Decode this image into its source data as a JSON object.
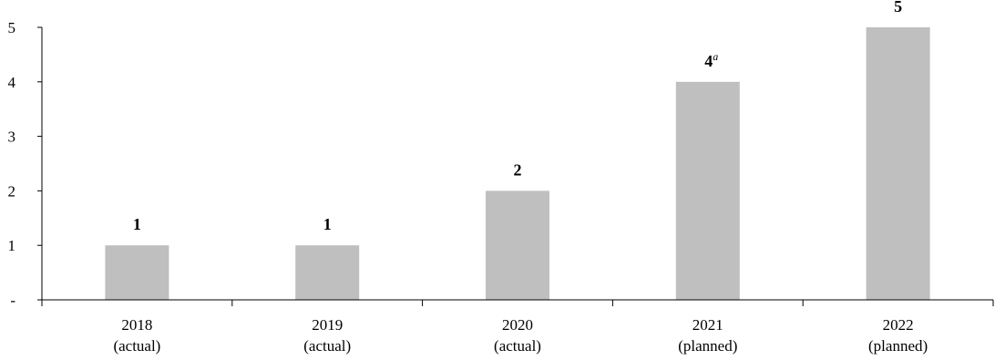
{
  "chart_data": {
    "type": "bar",
    "categories": [
      {
        "line1": "2018",
        "line2": "(actual)"
      },
      {
        "line1": "2019",
        "line2": "(actual)"
      },
      {
        "line1": "2020",
        "line2": "(actual)"
      },
      {
        "line1": "2021",
        "line2": "(planned)"
      },
      {
        "line1": "2022",
        "line2": "(planned)"
      }
    ],
    "values": [
      1,
      1,
      2,
      4,
      5
    ],
    "data_labels": [
      {
        "text": "1",
        "sup": ""
      },
      {
        "text": "1",
        "sup": ""
      },
      {
        "text": "2",
        "sup": ""
      },
      {
        "text": "4",
        "sup": "a"
      },
      {
        "text": "5",
        "sup": ""
      }
    ],
    "y_tick_labels": [
      {
        "value": 0,
        "label": "-"
      },
      {
        "value": 1,
        "label": "1"
      },
      {
        "value": 2,
        "label": "2"
      },
      {
        "value": 3,
        "label": "3"
      },
      {
        "value": 4,
        "label": "4"
      },
      {
        "value": 5,
        "label": "5"
      }
    ],
    "ylim": [
      0,
      5
    ],
    "title": "",
    "xlabel": "",
    "ylabel": "",
    "grid": false,
    "legend": "none",
    "bar_color": "#bfbfbf"
  }
}
